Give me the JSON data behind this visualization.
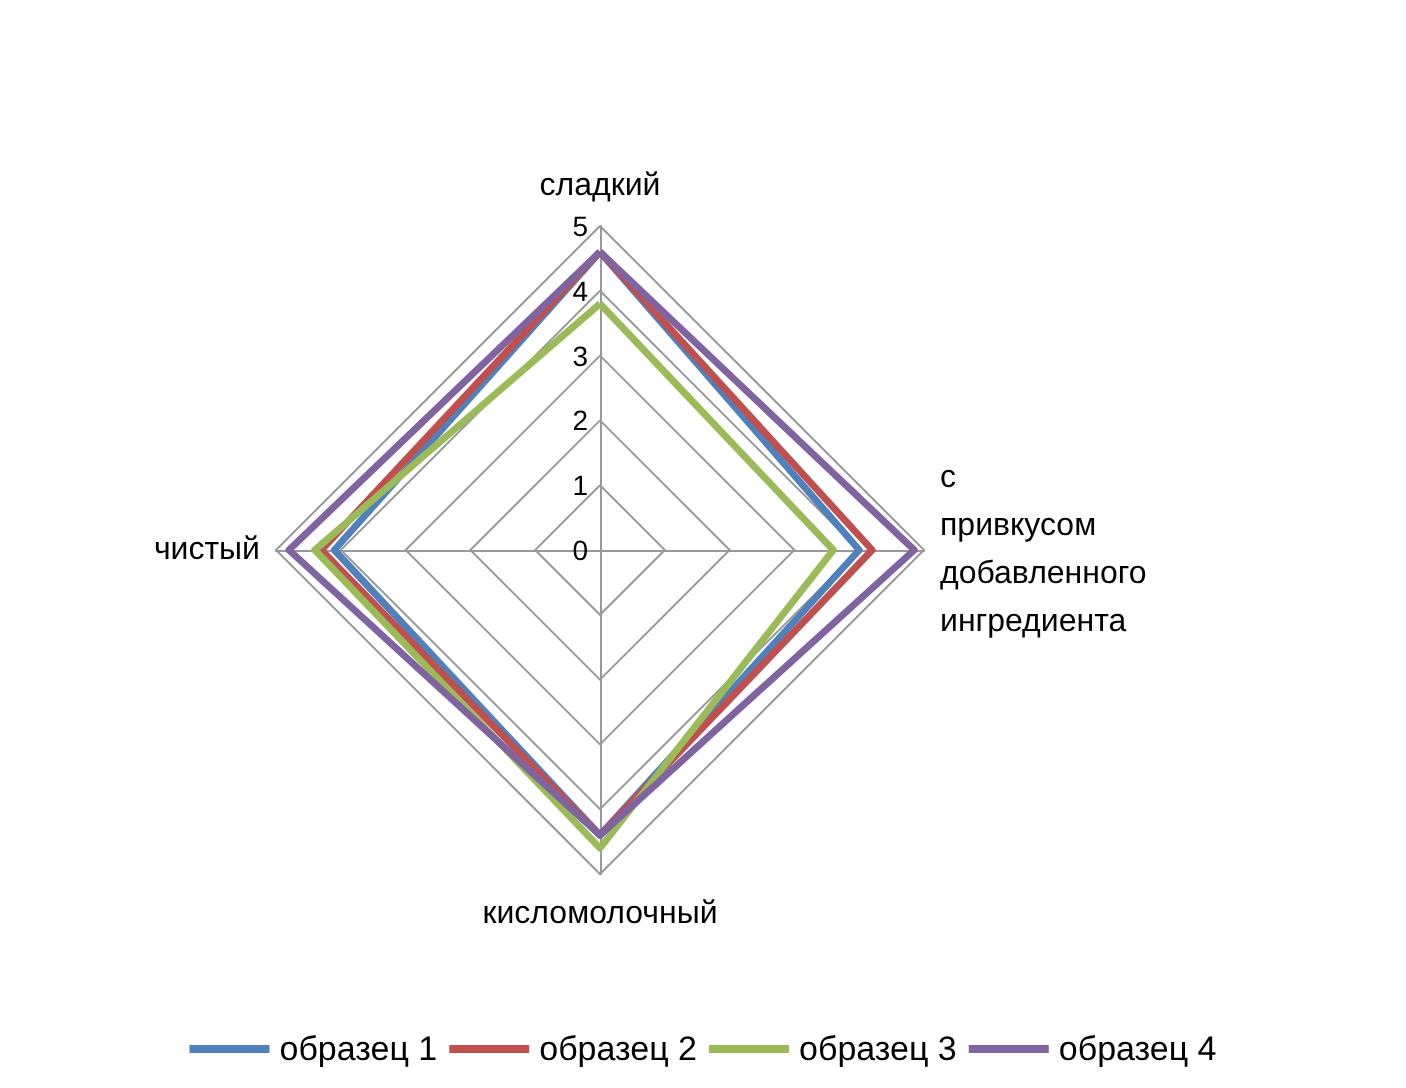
{
  "chart_data": {
    "type": "radar",
    "categories": [
      "сладкий",
      "с привкусом добавленного ингредиента",
      "кисломолочный",
      "чистый"
    ],
    "ylim": [
      0,
      5
    ],
    "yticks": [
      0,
      1,
      2,
      3,
      4,
      5
    ],
    "grid": true,
    "legend": "bottom",
    "marker": "none",
    "series": [
      {
        "name": "образец 1",
        "color": "#4f81bd",
        "values": [
          4.6,
          4.0,
          4.4,
          4.1
        ]
      },
      {
        "name": "образец 2",
        "color": "#c0504d",
        "values": [
          4.6,
          4.2,
          4.4,
          4.3
        ]
      },
      {
        "name": "образец 3",
        "color": "#9bbb59",
        "values": [
          3.8,
          3.6,
          4.6,
          4.4
        ]
      },
      {
        "name": "образец 4",
        "color": "#8064a2",
        "values": [
          4.6,
          4.85,
          4.4,
          4.8
        ]
      }
    ]
  }
}
